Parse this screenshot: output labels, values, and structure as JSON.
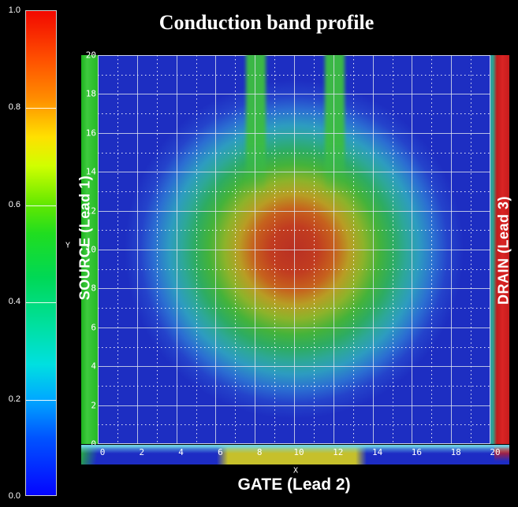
{
  "title": "Conduction band profile",
  "colorbar": {
    "ticks": [
      "1.0",
      "0.8",
      "0.6",
      "0.4",
      "0.2",
      "0.0"
    ],
    "top_color": "#ff0000",
    "bottom_color": "#0000ff"
  },
  "axes": {
    "x_label": "X",
    "y_label": "Y",
    "x_ticks": [
      {
        "label": "0",
        "on_gate": false
      },
      {
        "label": "2",
        "on_gate": false
      },
      {
        "label": "4",
        "on_gate": false
      },
      {
        "label": "6",
        "on_gate": false
      },
      {
        "label": "8",
        "on_gate": true
      },
      {
        "label": "10",
        "on_gate": true
      },
      {
        "label": "12",
        "on_gate": true
      },
      {
        "label": "14",
        "on_gate": false
      },
      {
        "label": "16",
        "on_gate": false
      },
      {
        "label": "18",
        "on_gate": false
      },
      {
        "label": "20",
        "on_gate": false
      }
    ],
    "y_ticks": [
      "0",
      "2",
      "4",
      "6",
      "8",
      "10",
      "12",
      "14",
      "16",
      "18",
      "20"
    ]
  },
  "leads": {
    "source_label": "SOURCE (Lead 1)",
    "drain_label": "DRAIN (Lead 3)",
    "gate_label": "GATE (Lead 2)",
    "source_color": "#2cc22c",
    "drain_color": "#d01d1d",
    "gate_color": "#c6c02b"
  },
  "chart_data": {
    "type": "heatmap",
    "title": "Conduction band profile",
    "xlabel": "X",
    "ylabel": "Y",
    "xlim": [
      0,
      20
    ],
    "ylim": [
      0,
      20
    ],
    "colorbar_range": [
      0.0,
      1.0
    ],
    "colorbar_tick_step": 0.2,
    "colormap": "rainbow (blue 0.0 -> cyan 0.2 -> green 0.5 -> yellow 0.7 -> orange 0.85 -> red 1.0)",
    "grid": "solid white gridlines at even integers, dotted white gridlines at odd integers",
    "features": [
      {
        "name": "central-peak",
        "center_x": 10,
        "center_y": 10,
        "peak_value": 1.0,
        "decay": "radial",
        "radius_to_background": 7
      },
      {
        "name": "top-stripe-left",
        "x_range": [
          7.5,
          8.5
        ],
        "y_range": [
          14,
          20
        ],
        "value": 0.55
      },
      {
        "name": "top-stripe-right",
        "x_range": [
          11.5,
          12.5
        ],
        "y_range": [
          14,
          20
        ],
        "value": 0.55
      },
      {
        "name": "background",
        "value": 0.05
      }
    ],
    "leads": [
      {
        "label": "SOURCE (Lead 1)",
        "position": "left",
        "color": "#2cc22c"
      },
      {
        "label": "DRAIN (Lead 3)",
        "position": "right",
        "color": "#d01d1d"
      },
      {
        "label": "GATE (Lead 2)",
        "position": "bottom",
        "color": "#c6c02b",
        "gate_x_range": [
          6.7,
          13.3
        ]
      }
    ]
  }
}
